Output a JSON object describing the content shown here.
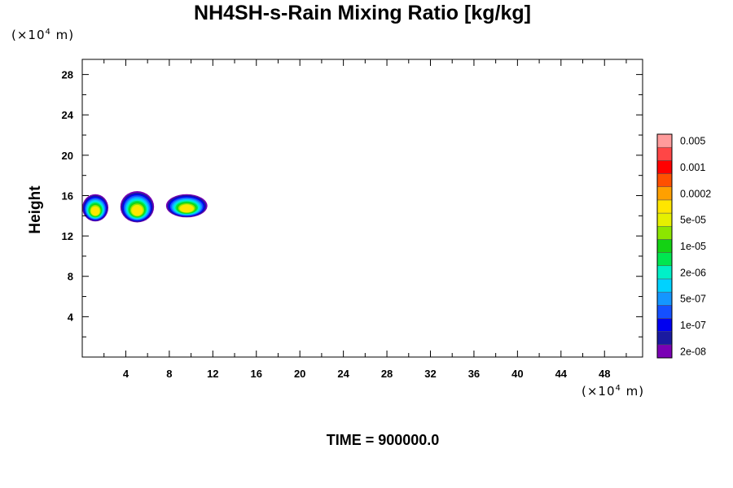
{
  "title": "NH4SH-s-Rain Mixing Ratio [kg/kg]",
  "footer": {
    "time_label": "TIME = 900000.0"
  },
  "units": {
    "y_prefix": "(×10",
    "y_exp": "4",
    "y_suffix": " m)",
    "x_prefix": "(×10",
    "x_exp": "4",
    "x_suffix": " m)"
  },
  "chart_data": {
    "type": "heatmap",
    "title": "NH4SH-s-Rain Mixing Ratio [kg/kg]",
    "ylabel": "Height",
    "xlabel": "",
    "xlim": [
      0,
      51.5
    ],
    "ylim": [
      0,
      29.5
    ],
    "x_ticks": [
      4,
      8,
      12,
      16,
      20,
      24,
      28,
      32,
      36,
      40,
      44,
      48
    ],
    "y_ticks": [
      4,
      8,
      12,
      16,
      20,
      24,
      28
    ],
    "colorbar": {
      "colors": [
        "#7a00b4",
        "#1a1aa0",
        "#0000f0",
        "#1450ff",
        "#1496ff",
        "#00d2ff",
        "#00f0c8",
        "#00e650",
        "#14d214",
        "#8ce600",
        "#e6f000",
        "#ffe600",
        "#ffa000",
        "#ff5000",
        "#ff0000",
        "#ff4646",
        "#ff9b9b"
      ],
      "labels": [
        "2e-08",
        "1e-07",
        "5e-07",
        "2e-06",
        "1e-05",
        "5e-05",
        "0.0002",
        "0.001",
        "0.005"
      ]
    },
    "blobs": [
      {
        "x_range": [
          0,
          2.4
        ],
        "z_range": [
          13.6,
          16.3
        ],
        "max_level": "5e-05"
      },
      {
        "x_range": [
          3.5,
          6.6
        ],
        "z_range": [
          13.5,
          16.6
        ],
        "max_level": "5e-05"
      },
      {
        "x_range": [
          7.7,
          11.5
        ],
        "z_range": [
          14.0,
          16.3
        ],
        "max_level": "5e-05"
      }
    ]
  }
}
